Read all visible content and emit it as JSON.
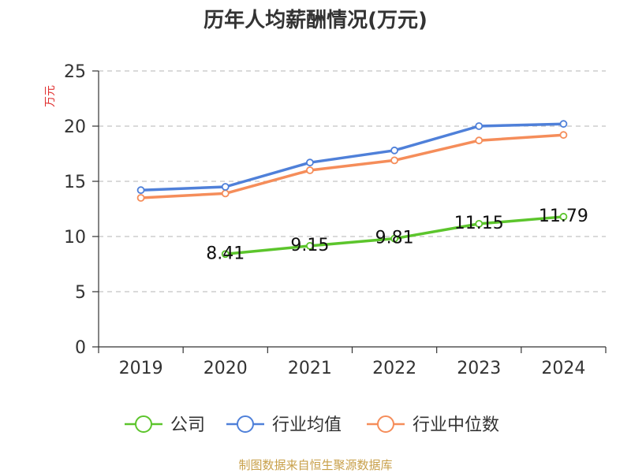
{
  "chart_data": {
    "type": "line",
    "title": "历年人均薪酬情况(万元)",
    "ylabel": "万元",
    "xlabel": "",
    "categories": [
      "2019",
      "2020",
      "2021",
      "2022",
      "2023",
      "2024"
    ],
    "ylim": [
      0,
      25
    ],
    "yticks": [
      0,
      5,
      10,
      15,
      20,
      25
    ],
    "grid": true,
    "legend_position": "bottom",
    "series": [
      {
        "name": "公司",
        "color": "#5cc52c",
        "values": [
          null,
          8.41,
          9.15,
          9.81,
          11.15,
          11.79
        ],
        "labels": [
          "",
          "8.41",
          "9.15",
          "9.81",
          "11.15",
          "11.79"
        ]
      },
      {
        "name": "行业均值",
        "color": "#4f80d9",
        "values": [
          14.2,
          14.5,
          16.7,
          17.8,
          20.0,
          20.2
        ],
        "labels": []
      },
      {
        "name": "行业中位数",
        "color": "#f58d5a",
        "values": [
          13.5,
          13.9,
          16.0,
          16.9,
          18.7,
          19.2
        ],
        "labels": []
      }
    ],
    "source": "制图数据来自恒生聚源数据库"
  }
}
